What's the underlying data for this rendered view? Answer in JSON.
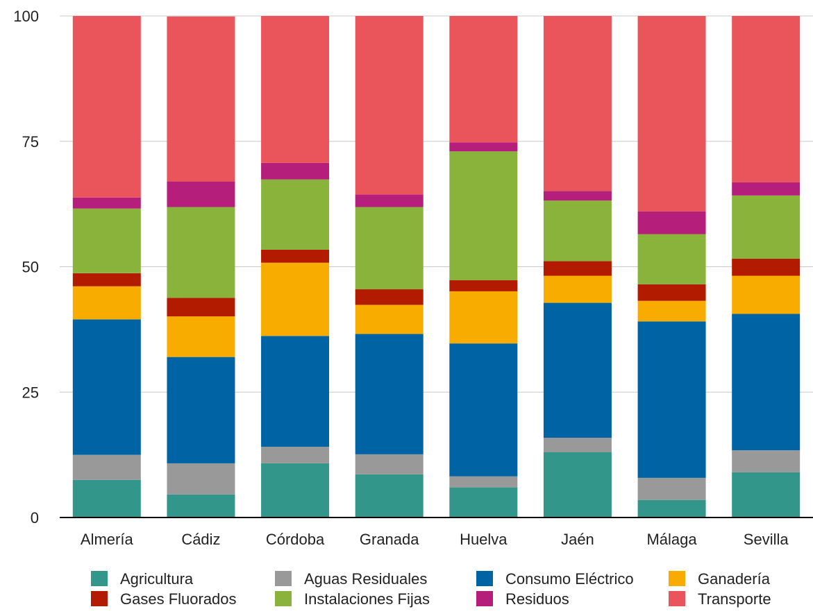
{
  "chart_data": {
    "type": "bar",
    "stacked": true,
    "title": "",
    "xlabel": "",
    "ylabel": "",
    "ylim": [
      0,
      100
    ],
    "yticks": [
      0,
      25,
      50,
      75,
      100
    ],
    "grid": true,
    "legend_position": "bottom",
    "categories": [
      "Almería",
      "Cádiz",
      "Córdoba",
      "Granada",
      "Huelva",
      "Jaén",
      "Málaga",
      "Sevilla"
    ],
    "series": [
      {
        "name": "Agricultura",
        "color": "#33968a",
        "values": [
          7.5,
          4.6,
          10.8,
          8.6,
          6.0,
          13.0,
          3.5,
          9.0
        ]
      },
      {
        "name": "Aguas Residuales",
        "color": "#999999",
        "values": [
          5.0,
          6.2,
          3.3,
          4.0,
          2.2,
          2.9,
          4.4,
          4.4
        ]
      },
      {
        "name": "Consumo Eléctrico",
        "color": "#0064a4",
        "values": [
          27.0,
          21.2,
          22.1,
          24.0,
          26.5,
          26.9,
          31.2,
          27.2
        ]
      },
      {
        "name": "Ganadería",
        "color": "#f9ac00",
        "values": [
          6.6,
          8.1,
          14.6,
          5.8,
          10.4,
          5.4,
          4.1,
          7.6
        ]
      },
      {
        "name": "Gases Fluorados",
        "color": "#b31b00",
        "values": [
          2.6,
          3.7,
          2.6,
          3.1,
          2.2,
          2.9,
          3.3,
          3.4
        ]
      },
      {
        "name": "Instalaciones Fijas",
        "color": "#8ab33c",
        "values": [
          12.9,
          18.1,
          14.0,
          16.4,
          25.7,
          12.1,
          10.0,
          12.6
        ]
      },
      {
        "name": "Residuos",
        "color": "#b51f7b",
        "values": [
          2.2,
          5.1,
          3.3,
          2.5,
          1.8,
          1.9,
          4.5,
          2.6
        ]
      },
      {
        "name": "Transporte",
        "color": "#ea555b",
        "values": [
          36.2,
          32.9,
          29.3,
          35.6,
          25.2,
          34.9,
          39.0,
          33.2
        ]
      }
    ]
  }
}
